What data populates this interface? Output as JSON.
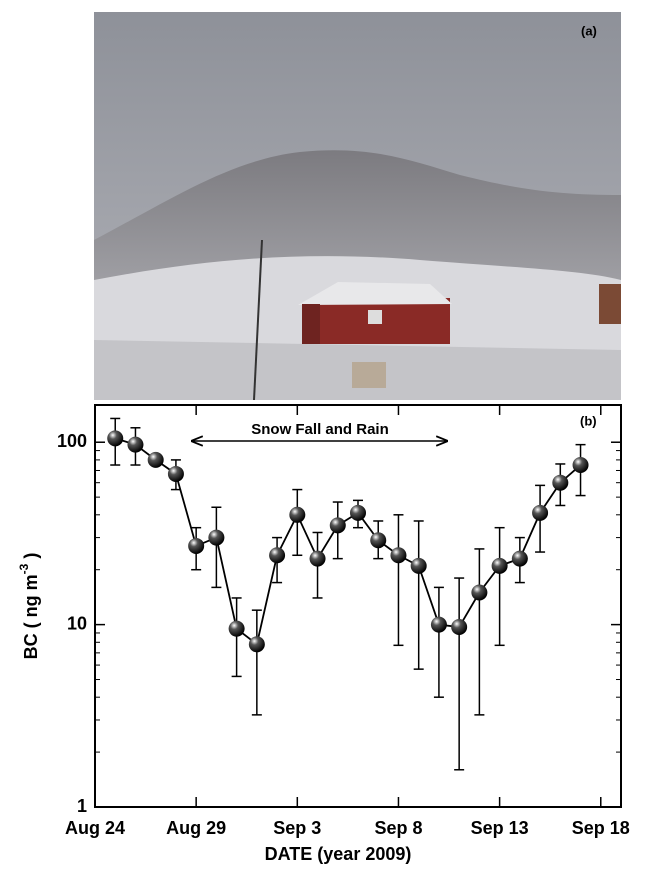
{
  "photo": {
    "label": "(a)"
  },
  "chart_data": {
    "type": "line",
    "panel_label": "(b)",
    "annotation": "Snow Fall and Rain",
    "x_label": "DATE (year 2009)",
    "y_label": {
      "main": "BC ( ng m",
      "sup": "-3",
      "end": " )"
    },
    "log_y": true,
    "color": "#000000",
    "xlim": [
      "2009-08-24",
      "2009-09-19"
    ],
    "xticks": [
      {
        "value": "2009-08-24",
        "label": "Aug 24"
      },
      {
        "value": "2009-08-29",
        "label": "Aug 29"
      },
      {
        "value": "2009-09-03",
        "label": "Sep 3"
      },
      {
        "value": "2009-09-08",
        "label": "Sep 8"
      },
      {
        "value": "2009-09-13",
        "label": "Sep 13"
      },
      {
        "value": "2009-09-18",
        "label": "Sep 18"
      }
    ],
    "ylim": [
      1,
      160
    ],
    "yticks": [
      1,
      10,
      100
    ],
    "x": [
      "2009-08-25",
      "2009-08-26",
      "2009-08-27",
      "2009-08-28",
      "2009-08-29",
      "2009-08-30",
      "2009-08-31",
      "2009-09-01",
      "2009-09-02",
      "2009-09-03",
      "2009-09-04",
      "2009-09-05",
      "2009-09-06",
      "2009-09-07",
      "2009-09-08",
      "2009-09-09",
      "2009-09-10",
      "2009-09-11",
      "2009-09-12",
      "2009-09-13",
      "2009-09-14",
      "2009-09-15",
      "2009-09-16",
      "2009-09-17"
    ],
    "values": [
      105,
      97,
      80,
      67,
      27,
      30,
      9.5,
      7.8,
      24,
      40,
      23,
      35,
      41,
      29,
      24,
      21,
      10,
      9.7,
      15,
      21,
      23,
      41,
      60,
      75
    ],
    "lower": [
      75,
      75,
      76,
      55,
      20,
      16,
      5.2,
      3.2,
      17,
      24,
      14,
      23,
      34,
      23,
      7.7,
      5.7,
      4,
      1.6,
      3.2,
      7.7,
      17,
      25,
      45,
      51
    ],
    "upper": [
      135,
      120,
      85,
      80,
      34,
      44,
      14,
      12,
      30,
      55,
      32,
      47,
      48,
      37,
      40,
      37,
      16,
      18,
      26,
      34,
      30,
      58,
      76,
      97
    ]
  }
}
